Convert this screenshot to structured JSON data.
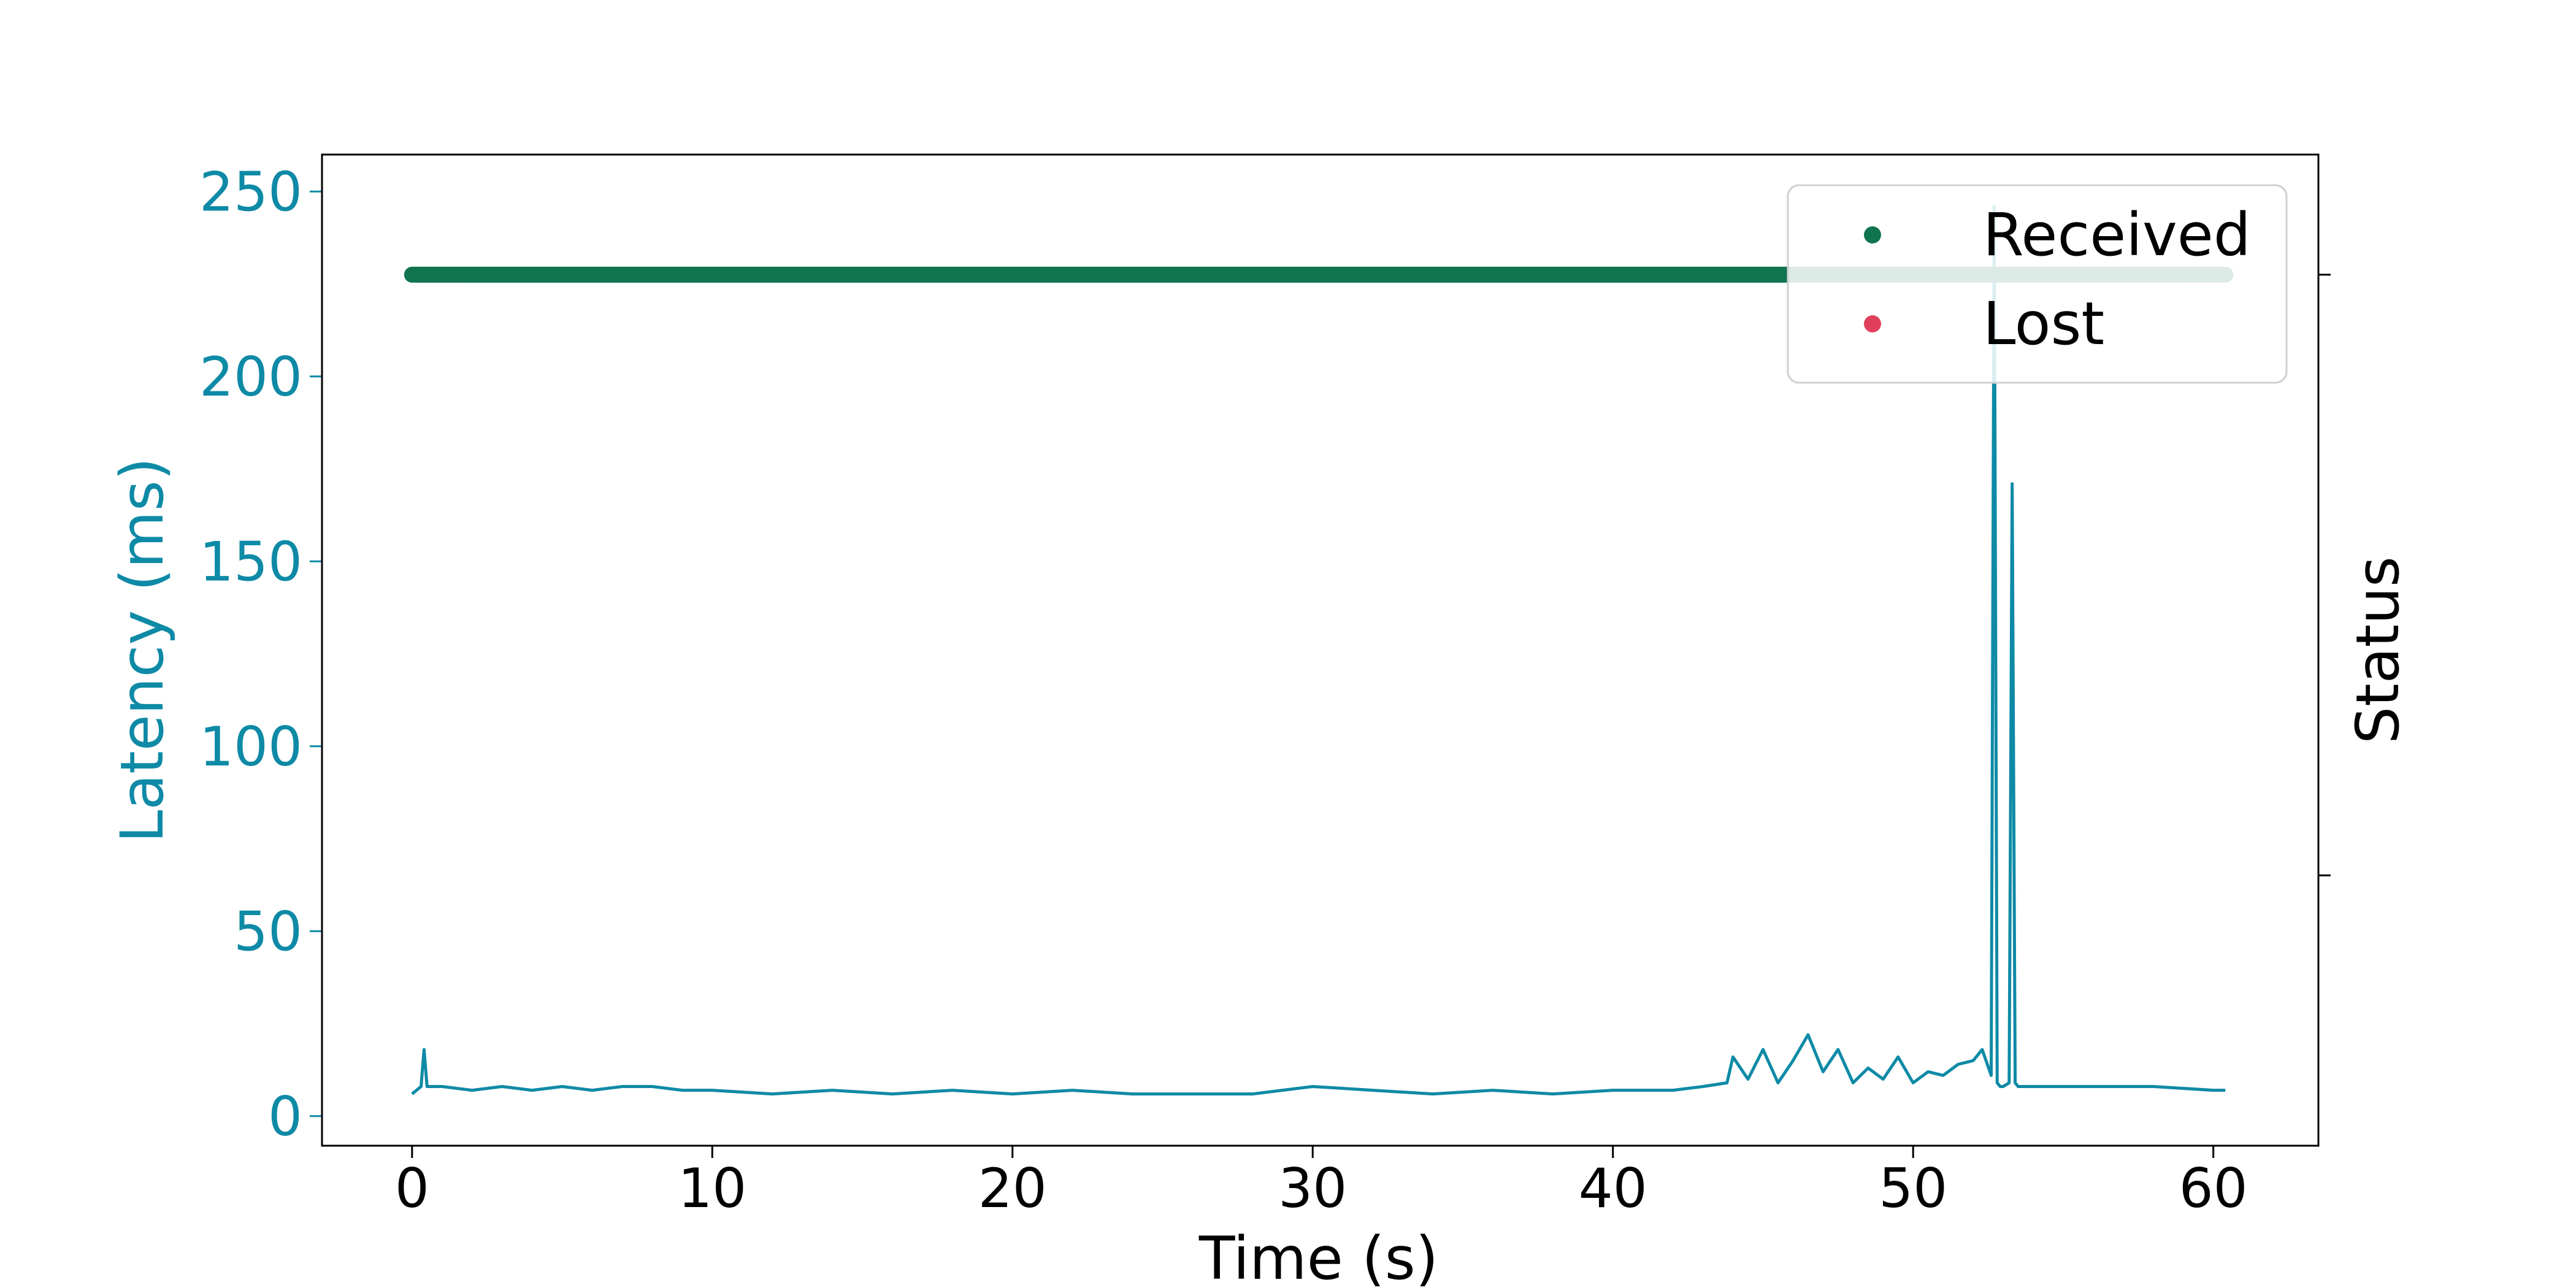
{
  "colors": {
    "latency": "#0e8aa6",
    "received": "#10744f",
    "lost": "#e0405c",
    "axis": "#000000",
    "background": "#ffffff"
  },
  "chart_data": {
    "type": "line",
    "xlabel": "Time (s)",
    "ylabel": "Latency (ms)",
    "y2label": "Status",
    "xlim": [
      -3,
      63.5
    ],
    "ylim": [
      -8,
      260
    ],
    "xticks": [
      "0",
      "10",
      "20",
      "30",
      "40",
      "50",
      "60"
    ],
    "yticks": [
      "0",
      "50",
      "100",
      "150",
      "200",
      "250"
    ],
    "legend": {
      "position": "top-right",
      "entries": [
        "Received",
        "Lost"
      ]
    },
    "series": [
      {
        "name": "Latency",
        "axis": "left",
        "x": [
          0,
          0.3,
          0.4,
          0.5,
          1,
          2,
          3,
          4,
          5,
          6,
          7,
          8,
          9,
          10,
          12,
          14,
          16,
          18,
          20,
          22,
          24,
          26,
          28,
          30,
          32,
          34,
          36,
          38,
          40,
          42,
          43,
          43.8,
          44,
          44.5,
          45,
          45.5,
          46,
          46.5,
          47,
          47.5,
          48,
          48.5,
          49,
          49.5,
          50,
          50.5,
          51,
          51.5,
          52,
          52.3,
          52.6,
          52.7,
          52.8,
          52.9,
          53.0,
          53.2,
          53.3,
          53.4,
          53.5,
          54,
          56,
          58,
          60,
          60.4
        ],
        "y": [
          6,
          8,
          18,
          8,
          8,
          7,
          8,
          7,
          8,
          7,
          8,
          8,
          7,
          7,
          6,
          7,
          6,
          7,
          6,
          7,
          6,
          6,
          6,
          8,
          7,
          6,
          7,
          6,
          7,
          7,
          8,
          9,
          16,
          10,
          18,
          9,
          15,
          22,
          12,
          18,
          9,
          13,
          10,
          16,
          9,
          12,
          11,
          14,
          15,
          18,
          11,
          246,
          9,
          8,
          8,
          9,
          171,
          9,
          8,
          8,
          8,
          8,
          7,
          7
        ]
      },
      {
        "name": "Received",
        "axis": "right",
        "type": "scatter",
        "x_start": 0,
        "x_end": 60.4,
        "value": 1
      }
    ],
    "y2lim": [
      -0.45,
      1.2
    ]
  }
}
